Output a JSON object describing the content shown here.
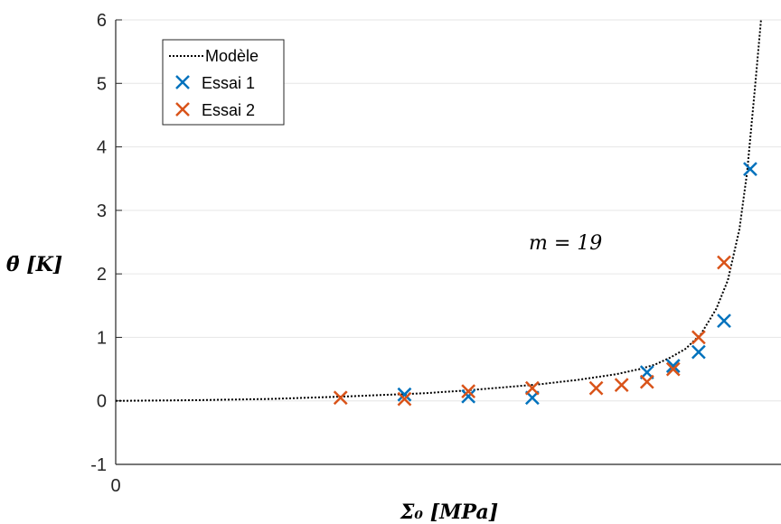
{
  "chart_data": {
    "type": "scatter",
    "title": "",
    "xlabel": "Σ₀ [MPa]",
    "ylabel": "θ̄ [K]",
    "xlim": [
      0,
      864
    ],
    "ylim": [
      -1,
      6
    ],
    "yticks": [
      -1,
      0,
      1,
      2,
      3,
      4,
      5,
      6
    ],
    "xtick_labels": [
      "0"
    ],
    "grid": true,
    "legend_position": "top-left",
    "annotation": "m = 19",
    "series": [
      {
        "name": "Modèle",
        "style": "dotted-line",
        "color": "#000000",
        "x": [
          0,
          100,
          200,
          300,
          400,
          450,
          500,
          550,
          600,
          650,
          680,
          700,
          720,
          740,
          760,
          780,
          795,
          810,
          820,
          830,
          838
        ],
        "y": [
          0,
          0.01,
          0.03,
          0.07,
          0.12,
          0.16,
          0.21,
          0.26,
          0.33,
          0.42,
          0.5,
          0.57,
          0.68,
          0.82,
          1.05,
          1.45,
          1.9,
          2.7,
          3.6,
          4.9,
          6.0
        ]
      },
      {
        "name": "Essai 1",
        "style": "x-marker",
        "color": "#0072BD",
        "x": [
          375,
          458,
          541,
          690,
          724,
          757,
          790,
          824
        ],
        "y": [
          0.1,
          0.07,
          0.05,
          0.45,
          0.55,
          0.77,
          1.26,
          3.65
        ]
      },
      {
        "name": "Essai 2",
        "style": "x-marker",
        "color": "#D95319",
        "x": [
          292,
          375,
          458,
          541,
          624,
          657,
          690,
          724,
          757,
          790
        ],
        "y": [
          0.05,
          0.03,
          0.15,
          0.2,
          0.2,
          0.25,
          0.3,
          0.5,
          1.0,
          2.18
        ]
      }
    ]
  }
}
